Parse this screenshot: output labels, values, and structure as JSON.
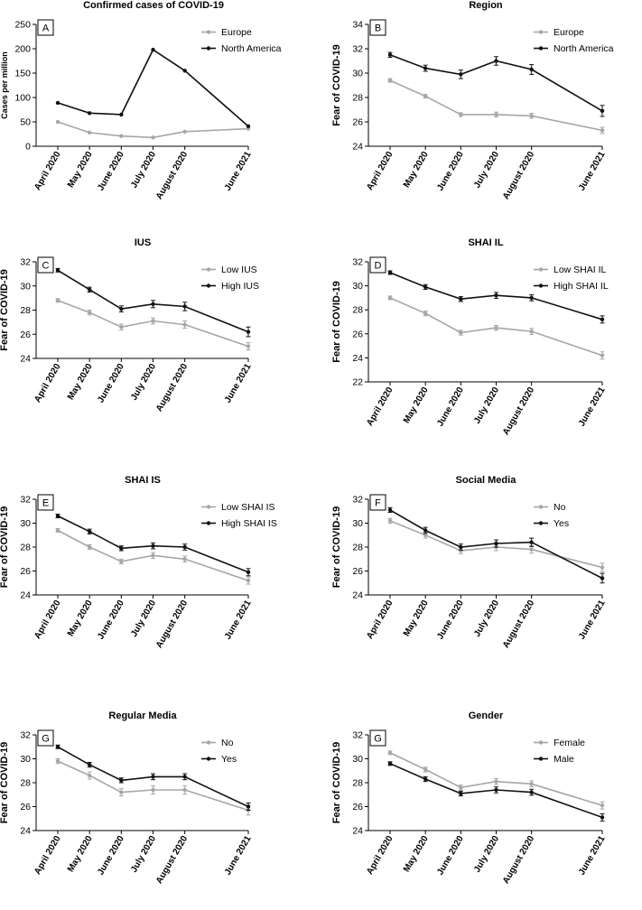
{
  "figure": {
    "x_categories": [
      "April 2020",
      "May 2020",
      "June 2020",
      "July 2020",
      "August 2020",
      "June 2021"
    ]
  },
  "chart_data": [
    {
      "panel": "A",
      "type": "line",
      "title": "Confirmed cases of  COVID-19",
      "xlabel": "",
      "ylabel": "Cases per million",
      "x": [
        0,
        1,
        2,
        3,
        4,
        6
      ],
      "ylim": [
        0,
        250
      ],
      "yticks": [
        0,
        50,
        100,
        150,
        200,
        250
      ],
      "legend_position": "top-right",
      "series": [
        {
          "name": "Europe",
          "color": "#a6a6a6",
          "values": [
            50,
            28,
            21,
            18,
            30,
            36
          ],
          "errors": [
            0,
            0,
            0,
            0,
            0,
            0
          ]
        },
        {
          "name": "North America",
          "color": "#111111",
          "values": [
            89,
            68,
            65,
            198,
            155,
            41
          ],
          "errors": [
            0,
            0,
            0,
            0,
            0,
            0
          ]
        }
      ]
    },
    {
      "panel": "B",
      "type": "line",
      "title": "Region",
      "xlabel": "",
      "ylabel": "Fear of  COVID-19",
      "x": [
        0,
        1,
        2,
        3,
        4,
        6
      ],
      "ylim": [
        24,
        34
      ],
      "yticks": [
        24,
        26,
        28,
        30,
        32,
        34
      ],
      "legend_position": "top-right",
      "series": [
        {
          "name": "Europe",
          "color": "#a6a6a6",
          "values": [
            29.4,
            28.1,
            26.6,
            26.6,
            26.5,
            25.3
          ],
          "errors": [
            0.15,
            0.15,
            0.15,
            0.2,
            0.2,
            0.25
          ]
        },
        {
          "name": "North America",
          "color": "#111111",
          "values": [
            31.5,
            30.4,
            29.9,
            31.0,
            30.3,
            26.9
          ],
          "errors": [
            0.2,
            0.25,
            0.35,
            0.35,
            0.4,
            0.45
          ]
        }
      ]
    },
    {
      "panel": "C",
      "type": "line",
      "title": "IUS",
      "xlabel": "",
      "ylabel": "Fear of  COVID-19",
      "x": [
        0,
        1,
        2,
        3,
        4,
        6
      ],
      "ylim": [
        24,
        32
      ],
      "yticks": [
        24,
        26,
        28,
        30,
        32
      ],
      "legend_position": "top-right",
      "series": [
        {
          "name": "Low IUS",
          "color": "#a6a6a6",
          "values": [
            28.8,
            27.8,
            26.6,
            27.1,
            26.8,
            25.0
          ],
          "errors": [
            0.15,
            0.2,
            0.25,
            0.25,
            0.3,
            0.3
          ]
        },
        {
          "name": "High IUS",
          "color": "#111111",
          "values": [
            31.3,
            29.7,
            28.1,
            28.5,
            28.3,
            26.2
          ],
          "errors": [
            0.15,
            0.2,
            0.25,
            0.3,
            0.35,
            0.4
          ]
        }
      ]
    },
    {
      "panel": "D",
      "type": "line",
      "title": "SHAI IL",
      "xlabel": "",
      "ylabel": "Fear of  COVID-19",
      "x": [
        0,
        1,
        2,
        3,
        4,
        6
      ],
      "ylim": [
        22,
        32
      ],
      "yticks": [
        22,
        24,
        26,
        28,
        30,
        32
      ],
      "legend_position": "top-right",
      "series": [
        {
          "name": "Low SHAI IL",
          "color": "#a6a6a6",
          "values": [
            29.0,
            27.7,
            26.1,
            26.5,
            26.2,
            24.2
          ],
          "errors": [
            0.15,
            0.2,
            0.2,
            0.2,
            0.25,
            0.3
          ]
        },
        {
          "name": "High SHAI IL",
          "color": "#111111",
          "values": [
            31.1,
            29.9,
            28.9,
            29.2,
            29.0,
            27.2
          ],
          "errors": [
            0.15,
            0.2,
            0.2,
            0.25,
            0.25,
            0.3
          ]
        }
      ]
    },
    {
      "panel": "E",
      "type": "line",
      "title": "SHAI IS",
      "xlabel": "",
      "ylabel": "Fear of  COVID-19",
      "x": [
        0,
        1,
        2,
        3,
        4,
        6
      ],
      "ylim": [
        24,
        32
      ],
      "yticks": [
        24,
        26,
        28,
        30,
        32
      ],
      "legend_position": "top-right",
      "series": [
        {
          "name": "Low SHAI IS",
          "color": "#a6a6a6",
          "values": [
            29.4,
            28.0,
            26.8,
            27.3,
            27.0,
            25.2
          ],
          "errors": [
            0.15,
            0.2,
            0.2,
            0.25,
            0.25,
            0.3
          ]
        },
        {
          "name": "High SHAI IS",
          "color": "#111111",
          "values": [
            30.6,
            29.3,
            27.9,
            28.1,
            28.0,
            25.9
          ],
          "errors": [
            0.15,
            0.2,
            0.2,
            0.25,
            0.25,
            0.3
          ]
        }
      ]
    },
    {
      "panel": "F",
      "type": "line",
      "title": "Social Media",
      "xlabel": "",
      "ylabel": "Fear of  COVID-19",
      "x": [
        0,
        1,
        2,
        3,
        4,
        6
      ],
      "ylim": [
        24,
        32
      ],
      "yticks": [
        24,
        26,
        28,
        30,
        32
      ],
      "legend_position": "top-right",
      "series": [
        {
          "name": "No",
          "color": "#a6a6a6",
          "values": [
            30.2,
            29.0,
            27.7,
            28.0,
            27.8,
            26.3
          ],
          "errors": [
            0.2,
            0.25,
            0.25,
            0.3,
            0.3,
            0.35
          ]
        },
        {
          "name": "Yes",
          "color": "#111111",
          "values": [
            31.1,
            29.4,
            28.0,
            28.3,
            28.4,
            25.4
          ],
          "errors": [
            0.2,
            0.25,
            0.25,
            0.3,
            0.35,
            0.4
          ]
        }
      ]
    },
    {
      "panel": "G",
      "type": "line",
      "title": "Regular Media",
      "xlabel": "",
      "ylabel": "Fear of  COVID-19",
      "x": [
        0,
        1,
        2,
        3,
        4,
        6
      ],
      "ylim": [
        24,
        32
      ],
      "yticks": [
        24,
        26,
        28,
        30,
        32
      ],
      "legend_position": "top-right",
      "series": [
        {
          "name": "No",
          "color": "#a6a6a6",
          "values": [
            29.8,
            28.6,
            27.2,
            27.4,
            27.4,
            25.7
          ],
          "errors": [
            0.2,
            0.3,
            0.3,
            0.35,
            0.35,
            0.4
          ]
        },
        {
          "name": "Yes",
          "color": "#111111",
          "values": [
            31.0,
            29.5,
            28.2,
            28.5,
            28.5,
            26.0
          ],
          "errors": [
            0.15,
            0.2,
            0.2,
            0.25,
            0.25,
            0.3
          ]
        }
      ]
    },
    {
      "panel": "G",
      "type": "line",
      "title": "Gender",
      "xlabel": "",
      "ylabel": "Fear of  COVID-19",
      "x": [
        0,
        1,
        2,
        3,
        4,
        6
      ],
      "ylim": [
        24,
        32
      ],
      "yticks": [
        24,
        26,
        28,
        30,
        32
      ],
      "legend_position": "top-right",
      "series": [
        {
          "name": "Female",
          "color": "#a6a6a6",
          "values": [
            30.5,
            29.1,
            27.6,
            28.1,
            27.9,
            26.1
          ],
          "errors": [
            0.15,
            0.2,
            0.2,
            0.25,
            0.25,
            0.3
          ]
        },
        {
          "name": "Male",
          "color": "#111111",
          "values": [
            29.6,
            28.3,
            27.1,
            27.4,
            27.2,
            25.1
          ],
          "errors": [
            0.15,
            0.2,
            0.2,
            0.25,
            0.25,
            0.3
          ]
        }
      ]
    }
  ]
}
